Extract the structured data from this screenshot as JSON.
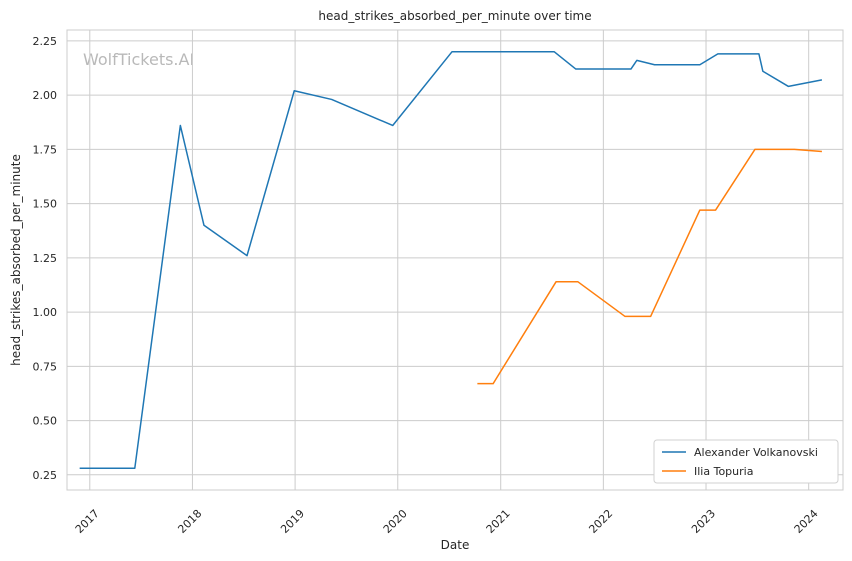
{
  "chart_data": {
    "type": "line",
    "title": "head_strikes_absorbed_per_minute over time",
    "xlabel": "Date",
    "ylabel": "head_strikes_absorbed_per_minute",
    "watermark": "WolfTickets.AI",
    "x_ticks": [
      "2017",
      "2018",
      "2019",
      "2020",
      "2021",
      "2022",
      "2023",
      "2024"
    ],
    "y_ticks": [
      "0.25",
      "0.50",
      "0.75",
      "1.00",
      "1.25",
      "1.50",
      "1.75",
      "2.00",
      "2.25"
    ],
    "xlim": [
      "2016-10-12",
      "2024-05-02"
    ],
    "ylim": [
      0.18,
      2.3
    ],
    "grid": true,
    "legend_position": "bottom-right",
    "series": [
      {
        "name": "Alexander Volkanovski",
        "color": "#1f77b4",
        "points": [
          {
            "x": "2016-11-26",
            "y": 0.28
          },
          {
            "x": "2017-06-10",
            "y": 0.28
          },
          {
            "x": "2017-11-19",
            "y": 1.86
          },
          {
            "x": "2018-02-11",
            "y": 1.4
          },
          {
            "x": "2018-07-14",
            "y": 1.26
          },
          {
            "x": "2018-12-29",
            "y": 2.02
          },
          {
            "x": "2019-05-11",
            "y": 1.98
          },
          {
            "x": "2019-12-14",
            "y": 1.86
          },
          {
            "x": "2020-07-12",
            "y": 2.2
          },
          {
            "x": "2021-07-10",
            "y": 2.2
          },
          {
            "x": "2021-09-25",
            "y": 2.12
          },
          {
            "x": "2022-04-09",
            "y": 2.12
          },
          {
            "x": "2022-04-30",
            "y": 2.16
          },
          {
            "x": "2022-07-02",
            "y": 2.14
          },
          {
            "x": "2022-12-10",
            "y": 2.14
          },
          {
            "x": "2023-02-12",
            "y": 2.19
          },
          {
            "x": "2023-07-08",
            "y": 2.19
          },
          {
            "x": "2023-07-22",
            "y": 2.11
          },
          {
            "x": "2023-10-21",
            "y": 2.04
          },
          {
            "x": "2024-02-17",
            "y": 2.07
          }
        ]
      },
      {
        "name": "Ilia Topuria",
        "color": "#ff7f0e",
        "points": [
          {
            "x": "2020-10-10",
            "y": 0.67
          },
          {
            "x": "2020-12-05",
            "y": 0.67
          },
          {
            "x": "2021-07-17",
            "y": 1.14
          },
          {
            "x": "2021-10-02",
            "y": 1.14
          },
          {
            "x": "2022-03-19",
            "y": 0.98
          },
          {
            "x": "2022-06-18",
            "y": 0.98
          },
          {
            "x": "2022-12-10",
            "y": 1.47
          },
          {
            "x": "2023-02-04",
            "y": 1.47
          },
          {
            "x": "2023-06-24",
            "y": 1.75
          },
          {
            "x": "2023-11-11",
            "y": 1.75
          },
          {
            "x": "2024-02-17",
            "y": 1.74
          }
        ]
      }
    ]
  }
}
